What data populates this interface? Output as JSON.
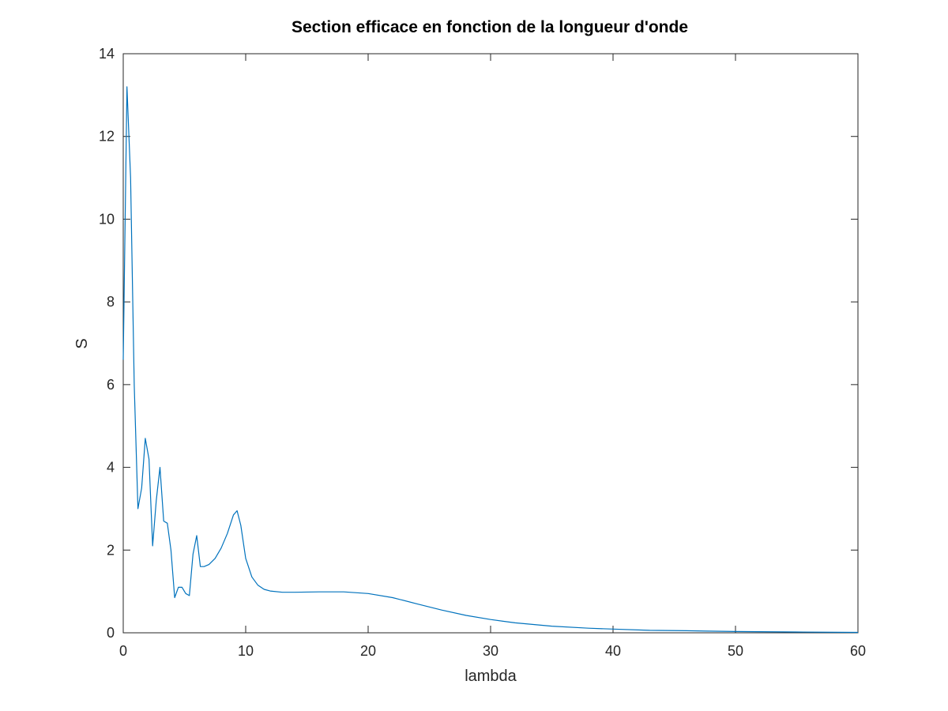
{
  "chart_data": {
    "type": "line",
    "title": "Section efficace en fonction de la longueur d'onde",
    "xlabel": "lambda",
    "ylabel": "S",
    "xlim": [
      0,
      60
    ],
    "ylim": [
      0,
      14
    ],
    "xticks": [
      0,
      10,
      20,
      30,
      40,
      50,
      60
    ],
    "yticks": [
      0,
      2,
      4,
      6,
      8,
      10,
      12,
      14
    ],
    "grid": false,
    "legend": "none",
    "series": [
      {
        "color": "#0072bd",
        "x": [
          0.0,
          0.3,
          0.6,
          0.9,
          1.2,
          1.5,
          1.8,
          2.1,
          2.4,
          2.7,
          3.0,
          3.3,
          3.6,
          3.9,
          4.2,
          4.5,
          4.8,
          5.1,
          5.4,
          5.7,
          6.0,
          6.3,
          6.6,
          7.0,
          7.5,
          8.0,
          8.5,
          9.0,
          9.3,
          9.6,
          10.0,
          10.5,
          11.0,
          11.5,
          12.0,
          13.0,
          14.0,
          16.0,
          18.0,
          20.0,
          22.0,
          24.0,
          26.0,
          28.0,
          30.0,
          32.0,
          35.0,
          38.0,
          40.0,
          43.0,
          46.0,
          50.0,
          55.0,
          60.0
        ],
        "y": [
          6.6,
          13.2,
          11.0,
          6.0,
          3.0,
          3.5,
          4.7,
          4.2,
          2.1,
          3.2,
          4.0,
          2.7,
          2.65,
          2.0,
          0.85,
          1.1,
          1.1,
          0.95,
          0.9,
          1.9,
          2.35,
          1.6,
          1.6,
          1.65,
          1.8,
          2.05,
          2.4,
          2.85,
          2.95,
          2.6,
          1.8,
          1.35,
          1.15,
          1.05,
          1.01,
          0.98,
          0.98,
          0.99,
          0.99,
          0.95,
          0.85,
          0.7,
          0.55,
          0.42,
          0.32,
          0.24,
          0.16,
          0.11,
          0.09,
          0.06,
          0.05,
          0.03,
          0.02,
          0.01
        ]
      }
    ]
  }
}
